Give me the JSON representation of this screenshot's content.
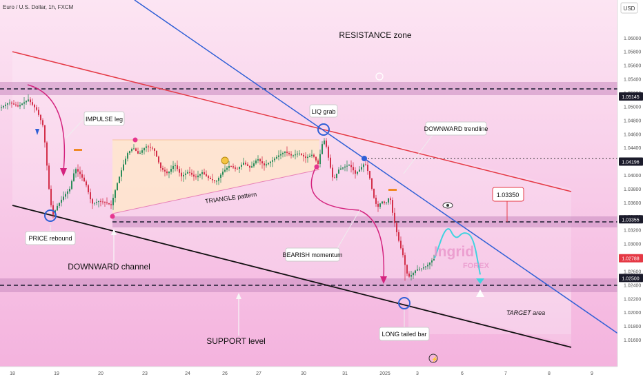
{
  "header": {
    "symbol_title": "Euro / U.S. Dollar, 1h, FXCM"
  },
  "chart_data": {
    "type": "candlestick",
    "title": "Euro / U.S. Dollar, 1h, FXCM",
    "currency_label": "USD",
    "ylim": [
      1.0145,
      1.0645
    ],
    "y_ticks": [
      "1.06000",
      "1.05800",
      "1.05600",
      "1.05400",
      "1.05200",
      "1.05000",
      "1.04800",
      "1.04600",
      "1.04400",
      "1.04200",
      "1.04000",
      "1.03800",
      "1.03600",
      "1.03400",
      "1.03200",
      "1.03000",
      "1.02800",
      "1.02600",
      "1.02400",
      "1.02200",
      "1.02000",
      "1.01800",
      "1.01600"
    ],
    "x_ticks": [
      "18",
      "19",
      "20",
      "23",
      "24",
      "26",
      "27",
      "30",
      "31",
      "2025",
      "3",
      "6",
      "7",
      "8",
      "9"
    ],
    "price_tags": [
      {
        "value": "1.05145",
        "style": "dark"
      },
      {
        "value": "1.04196",
        "style": "dark"
      },
      {
        "value": "1.03355",
        "style": "dark"
      },
      {
        "value": "1.02788",
        "style": "red"
      },
      {
        "value": "1.02500",
        "style": "dark"
      }
    ],
    "levels": {
      "resistance": 1.05145,
      "liq_line": 1.04196,
      "mid": 1.03355,
      "support": 1.025,
      "callout": "1.03350"
    },
    "price_path": [
      [
        0,
        1.0498
      ],
      [
        12,
        1.0506
      ],
      [
        25,
        1.05
      ],
      [
        40,
        1.051
      ],
      [
        52,
        1.0495
      ],
      [
        62,
        1.047
      ],
      [
        70,
        1.038
      ],
      [
        75,
        1.034
      ],
      [
        82,
        1.0355
      ],
      [
        92,
        1.037
      ],
      [
        100,
        1.038
      ],
      [
        108,
        1.041
      ],
      [
        116,
        1.04
      ],
      [
        124,
        1.0385
      ],
      [
        132,
        1.0358
      ],
      [
        142,
        1.0362
      ],
      [
        152,
        1.036
      ],
      [
        160,
        1.0356
      ],
      [
        168,
        1.0385
      ],
      [
        176,
        1.041
      ],
      [
        184,
        1.0432
      ],
      [
        192,
        1.044
      ],
      [
        200,
        1.043
      ],
      [
        210,
        1.0442
      ],
      [
        222,
        1.0438
      ],
      [
        232,
        1.041
      ],
      [
        242,
        1.0402
      ],
      [
        252,
        1.0416
      ],
      [
        262,
        1.0398
      ],
      [
        272,
        1.0405
      ],
      [
        282,
        1.0396
      ],
      [
        292,
        1.0404
      ],
      [
        302,
        1.0395
      ],
      [
        312,
        1.039
      ],
      [
        322,
        1.0405
      ],
      [
        332,
        1.0414
      ],
      [
        342,
        1.0408
      ],
      [
        352,
        1.0418
      ],
      [
        362,
        1.041
      ],
      [
        372,
        1.0424
      ],
      [
        382,
        1.0414
      ],
      [
        392,
        1.042
      ],
      [
        402,
        1.0428
      ],
      [
        412,
        1.0434
      ],
      [
        422,
        1.0428
      ],
      [
        432,
        1.0432
      ],
      [
        442,
        1.0425
      ],
      [
        452,
        1.043
      ],
      [
        460,
        1.0416
      ],
      [
        466,
        1.0445
      ],
      [
        470,
        1.0452
      ],
      [
        476,
        1.042
      ],
      [
        482,
        1.0392
      ],
      [
        490,
        1.0408
      ],
      [
        498,
        1.0412
      ],
      [
        506,
        1.0415
      ],
      [
        514,
        1.0402
      ],
      [
        520,
        1.0408
      ],
      [
        528,
        1.0418
      ],
      [
        534,
        1.04
      ],
      [
        540,
        1.037
      ],
      [
        546,
        1.0352
      ],
      [
        552,
        1.0362
      ],
      [
        558,
        1.0358
      ],
      [
        564,
        1.037
      ],
      [
        568,
        1.0345
      ],
      [
        572,
        1.0325
      ],
      [
        578,
        1.03
      ],
      [
        584,
        1.028
      ],
      [
        588,
        1.0258
      ],
      [
        592,
        1.0252
      ],
      [
        596,
        1.0255
      ],
      [
        602,
        1.0262
      ],
      [
        610,
        1.0264
      ],
      [
        618,
        1.0268
      ],
      [
        624,
        1.0275
      ],
      [
        630,
        1.0279
      ]
    ],
    "projection": [
      [
        630,
        1.0279
      ],
      [
        648,
        1.033
      ],
      [
        660,
        1.0305
      ],
      [
        672,
        1.0318
      ],
      [
        686,
        1.031
      ],
      [
        696,
        1.0255
      ]
    ],
    "annotations": [
      {
        "text": "RESISTANCE zone"
      },
      {
        "text": "IMPULSE leg"
      },
      {
        "text": "LIQ grab"
      },
      {
        "text": "DOWNWARD trendline"
      },
      {
        "text": "TRIANGLE pattern"
      },
      {
        "text": "PRICE rebound"
      },
      {
        "text": "DOWNWARD channel"
      },
      {
        "text": "BEARISH momentum"
      },
      {
        "text": "LONG tailed bar"
      },
      {
        "text": "SUPPORT level"
      },
      {
        "text": "TARGET area"
      }
    ],
    "watermark": {
      "line1": "Ingrid",
      "line2": "FOREX"
    }
  }
}
